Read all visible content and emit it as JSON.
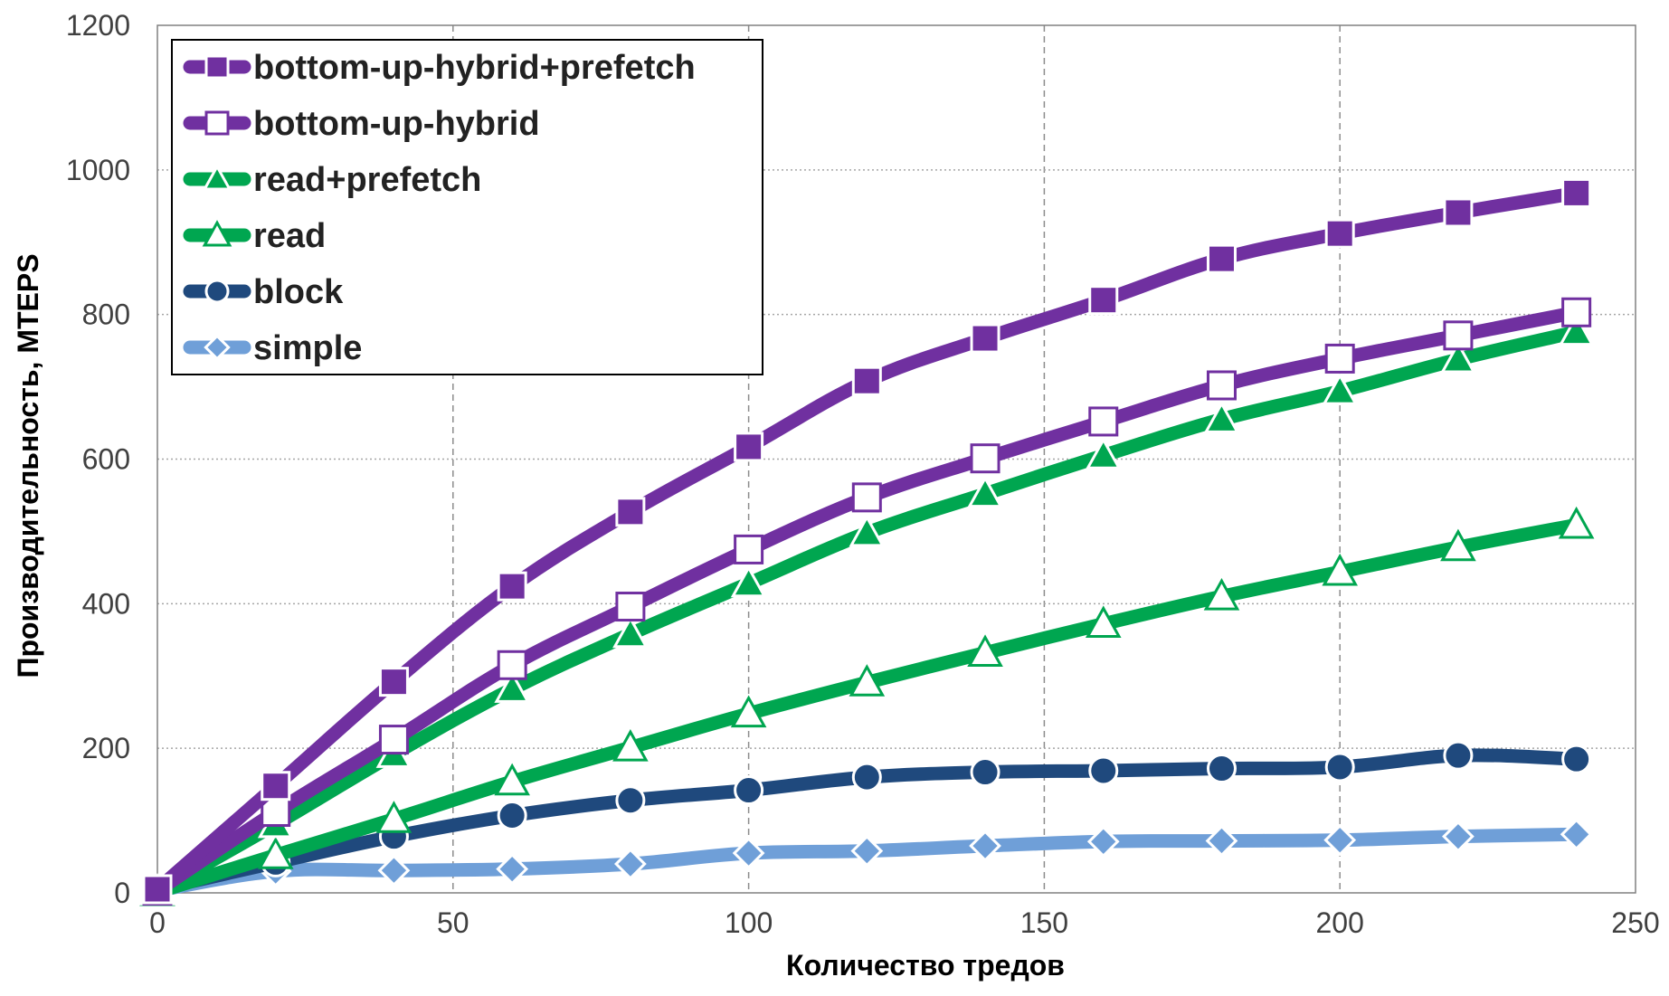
{
  "chart_data": {
    "type": "line",
    "xlabel": "Количество тредов",
    "ylabel": "Производительность, MTEPS",
    "xlim": [
      0,
      250
    ],
    "ylim": [
      0,
      1200
    ],
    "xticks": [
      "0",
      "50",
      "100",
      "150",
      "200",
      "250"
    ],
    "yticks": [
      "0",
      "200",
      "400",
      "600",
      "800",
      "1000",
      "1200"
    ],
    "grid": {
      "x": "dashed",
      "y": "dotted"
    },
    "legend_position": "top-left",
    "x": [
      0,
      20,
      40,
      60,
      80,
      100,
      120,
      140,
      160,
      180,
      200,
      220,
      240
    ],
    "series": [
      {
        "name": "bottom-up-hybrid+prefetch",
        "color": "#7030a0",
        "marker": "square-filled",
        "values": [
          5,
          148,
          292,
          424,
          527,
          617,
          708,
          767,
          820,
          877,
          912,
          941,
          968
        ]
      },
      {
        "name": "bottom-up-hybrid",
        "color": "#7030a0",
        "marker": "square-open",
        "values": [
          3,
          112,
          212,
          315,
          396,
          475,
          547,
          601,
          652,
          702,
          739,
          771,
          803
        ]
      },
      {
        "name": "read+prefetch",
        "color": "#00a650",
        "marker": "triangle-filled",
        "values": [
          2,
          95,
          192,
          282,
          358,
          428,
          498,
          552,
          605,
          655,
          694,
          738,
          776
        ]
      },
      {
        "name": "read",
        "color": "#00a650",
        "marker": "triangle-open",
        "values": [
          1,
          52,
          102,
          154,
          201,
          248,
          291,
          332,
          372,
          410,
          444,
          478,
          509
        ]
      },
      {
        "name": "block",
        "color": "#1f497d",
        "marker": "circle-filled",
        "values": [
          5,
          42,
          78,
          107,
          128,
          142,
          160,
          167,
          169,
          172,
          174,
          190,
          185
        ]
      },
      {
        "name": "simple",
        "color": "#6f9fd8",
        "marker": "diamond-filled",
        "values": [
          3,
          30,
          31,
          33,
          40,
          55,
          58,
          65,
          71,
          72,
          73,
          78,
          81
        ]
      }
    ]
  }
}
